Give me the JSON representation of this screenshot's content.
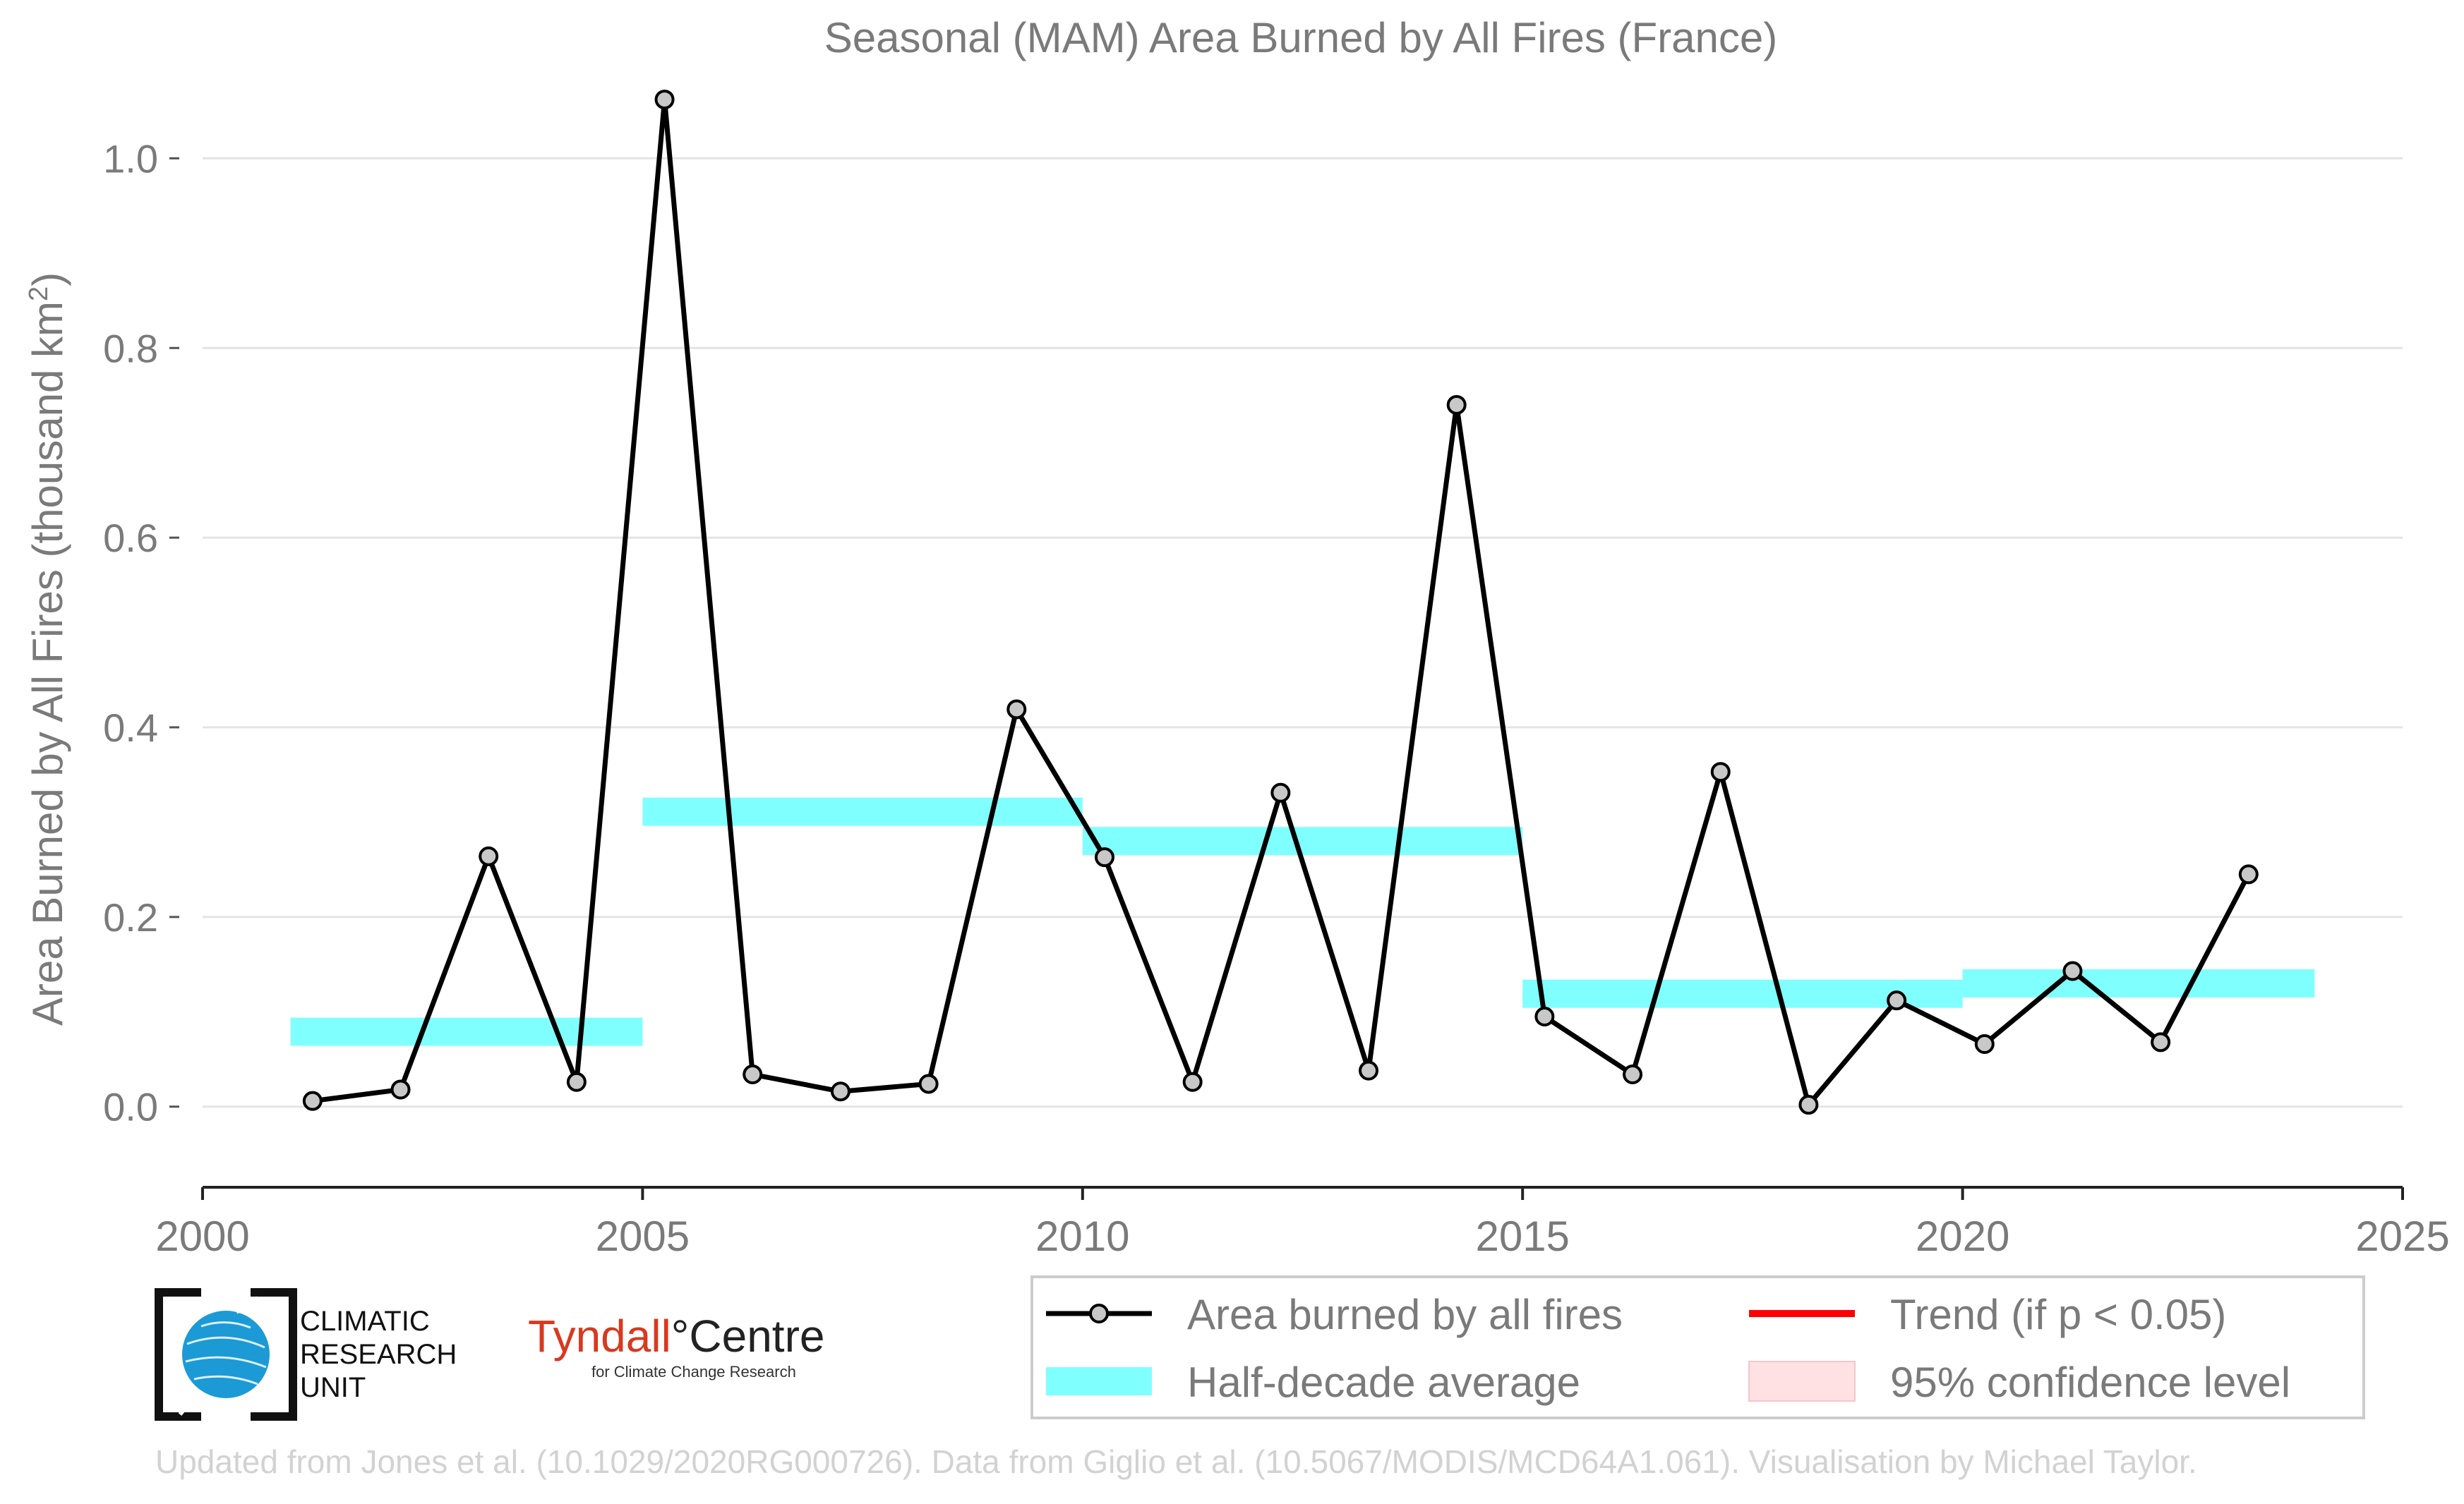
{
  "chart_data": {
    "type": "line",
    "title": "Seasonal (MAM) Area Burned by All Fires (France)",
    "xlabel": "",
    "ylabel_main": "Area Burned by All Fires (thousand km",
    "ylabel_sup": "2",
    "ylabel_end": ")",
    "xlim": [
      2000,
      2025
    ],
    "ylim": [
      -0.085,
      1.1
    ],
    "x_ticks": [
      2000,
      2005,
      2010,
      2015,
      2020,
      2025
    ],
    "y_ticks": [
      0.0,
      0.2,
      0.4,
      0.6,
      0.8,
      1.0
    ],
    "y_tick_labels": [
      "0.0",
      "0.2",
      "0.4",
      "0.6",
      "0.8",
      "1.0"
    ],
    "grid": "horizontal",
    "series": [
      {
        "name": "Area burned by all fires",
        "color": "#000000",
        "marker_fill": "#c8c8c8",
        "x": [
          2001.25,
          2002.25,
          2003.25,
          2004.25,
          2005.25,
          2006.25,
          2007.25,
          2008.25,
          2009.25,
          2010.25,
          2011.25,
          2012.25,
          2013.25,
          2014.25,
          2015.25,
          2016.25,
          2017.25,
          2018.25,
          2019.25,
          2020.25,
          2021.25,
          2022.25,
          2023.25
        ],
        "y": [
          0.006,
          0.018,
          0.264,
          0.026,
          1.062,
          0.034,
          0.016,
          0.024,
          0.419,
          0.263,
          0.026,
          0.331,
          0.038,
          0.74,
          0.095,
          0.034,
          0.353,
          0.002,
          0.112,
          0.066,
          0.143,
          0.068,
          0.245
        ]
      }
    ],
    "half_decade_average": {
      "name": "Half-decade average",
      "color": "#80ffff",
      "segments": [
        {
          "x0": 2001,
          "x1": 2005,
          "y": 0.079
        },
        {
          "x0": 2005,
          "x1": 2010,
          "y": 0.311
        },
        {
          "x0": 2010,
          "x1": 2015,
          "y": 0.28
        },
        {
          "x0": 2015,
          "x1": 2020,
          "y": 0.119
        },
        {
          "x0": 2020,
          "x1": 2024,
          "y": 0.13
        }
      ]
    },
    "legend": {
      "placement": "bottom-right",
      "entries": [
        {
          "label": "Area burned by all fires",
          "kind": "line-marker",
          "color": "#000000"
        },
        {
          "label": "Trend (if p < 0.05)",
          "kind": "line",
          "color": "#ff0000"
        },
        {
          "label": "Half-decade average",
          "kind": "band",
          "color": "#80ffff"
        },
        {
          "label": "95% confidence level",
          "kind": "box",
          "color": "#ffe0e3"
        }
      ]
    }
  },
  "logos": {
    "cru_line1": "CLIMATIC",
    "cru_line2": "RESEARCH",
    "cru_line3": "UNIT",
    "tyndall_main": "Tyndall",
    "tyndall_degree": "°",
    "tyndall_rest": "Centre",
    "tyndall_sub": "for Climate Change Research"
  },
  "footer": "Updated from Jones et al. (10.1029/2020RG000726). Data from Giglio et al. (10.5067/MODIS/MCD64A1.061). Visualisation by Michael Taylor."
}
